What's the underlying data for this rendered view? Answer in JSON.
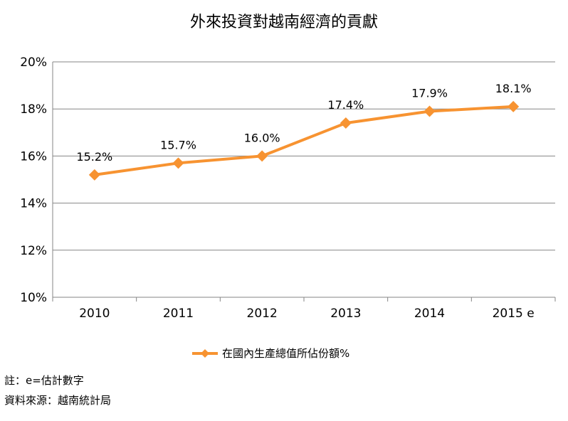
{
  "chart_data": {
    "type": "line",
    "title": "外來投資對越南經濟的貢獻",
    "categories": [
      "2010",
      "2011",
      "2012",
      "2013",
      "2014",
      "2015 e"
    ],
    "series": [
      {
        "name": "在國內生產總值所佔份額%",
        "values": [
          15.2,
          15.7,
          16.0,
          17.4,
          17.9,
          18.1
        ],
        "labels": [
          "15.2%",
          "15.7%",
          "16.0%",
          "17.4%",
          "17.9%",
          "18.1%"
        ],
        "color": "#F79331"
      }
    ],
    "ylim": [
      10,
      20
    ],
    "yticks": [
      10,
      12,
      14,
      16,
      18,
      20
    ],
    "ytick_labels": [
      "10%",
      "12%",
      "14%",
      "16%",
      "18%",
      "20%"
    ],
    "grid": true,
    "legend": "bottom-center",
    "xlabel": "",
    "ylabel": ""
  },
  "notes": {
    "note": "註：e=估計數字",
    "source": "資料來源：越南統計局"
  },
  "colors": {
    "series": "#F79331",
    "gridline": "#868686",
    "axis": "#868686"
  }
}
